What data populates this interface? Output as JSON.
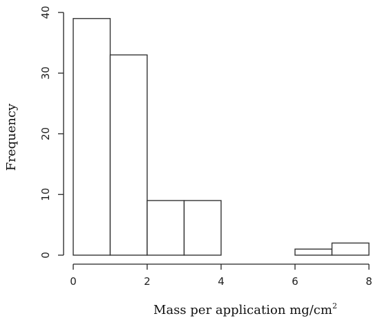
{
  "chart_data": {
    "type": "bar",
    "subtype": "histogram",
    "bin_edges": [
      0,
      1,
      2,
      3,
      4,
      5,
      6,
      7,
      8
    ],
    "values": [
      39,
      33,
      9,
      9,
      0,
      0,
      1,
      2
    ],
    "xlabel": "Mass per application mg/cm",
    "xlabel_superscript": "2",
    "ylabel": "Frequency",
    "xlim": [
      0,
      8
    ],
    "ylim": [
      0,
      40
    ],
    "x_ticks": [
      "0",
      "2",
      "4",
      "6",
      "8"
    ],
    "x_tick_values": [
      0,
      2,
      4,
      6,
      8
    ],
    "y_ticks": [
      "0",
      "10",
      "20",
      "30",
      "40"
    ],
    "y_tick_values": [
      0,
      10,
      20,
      30,
      40
    ],
    "grid": false,
    "legend": "none"
  }
}
